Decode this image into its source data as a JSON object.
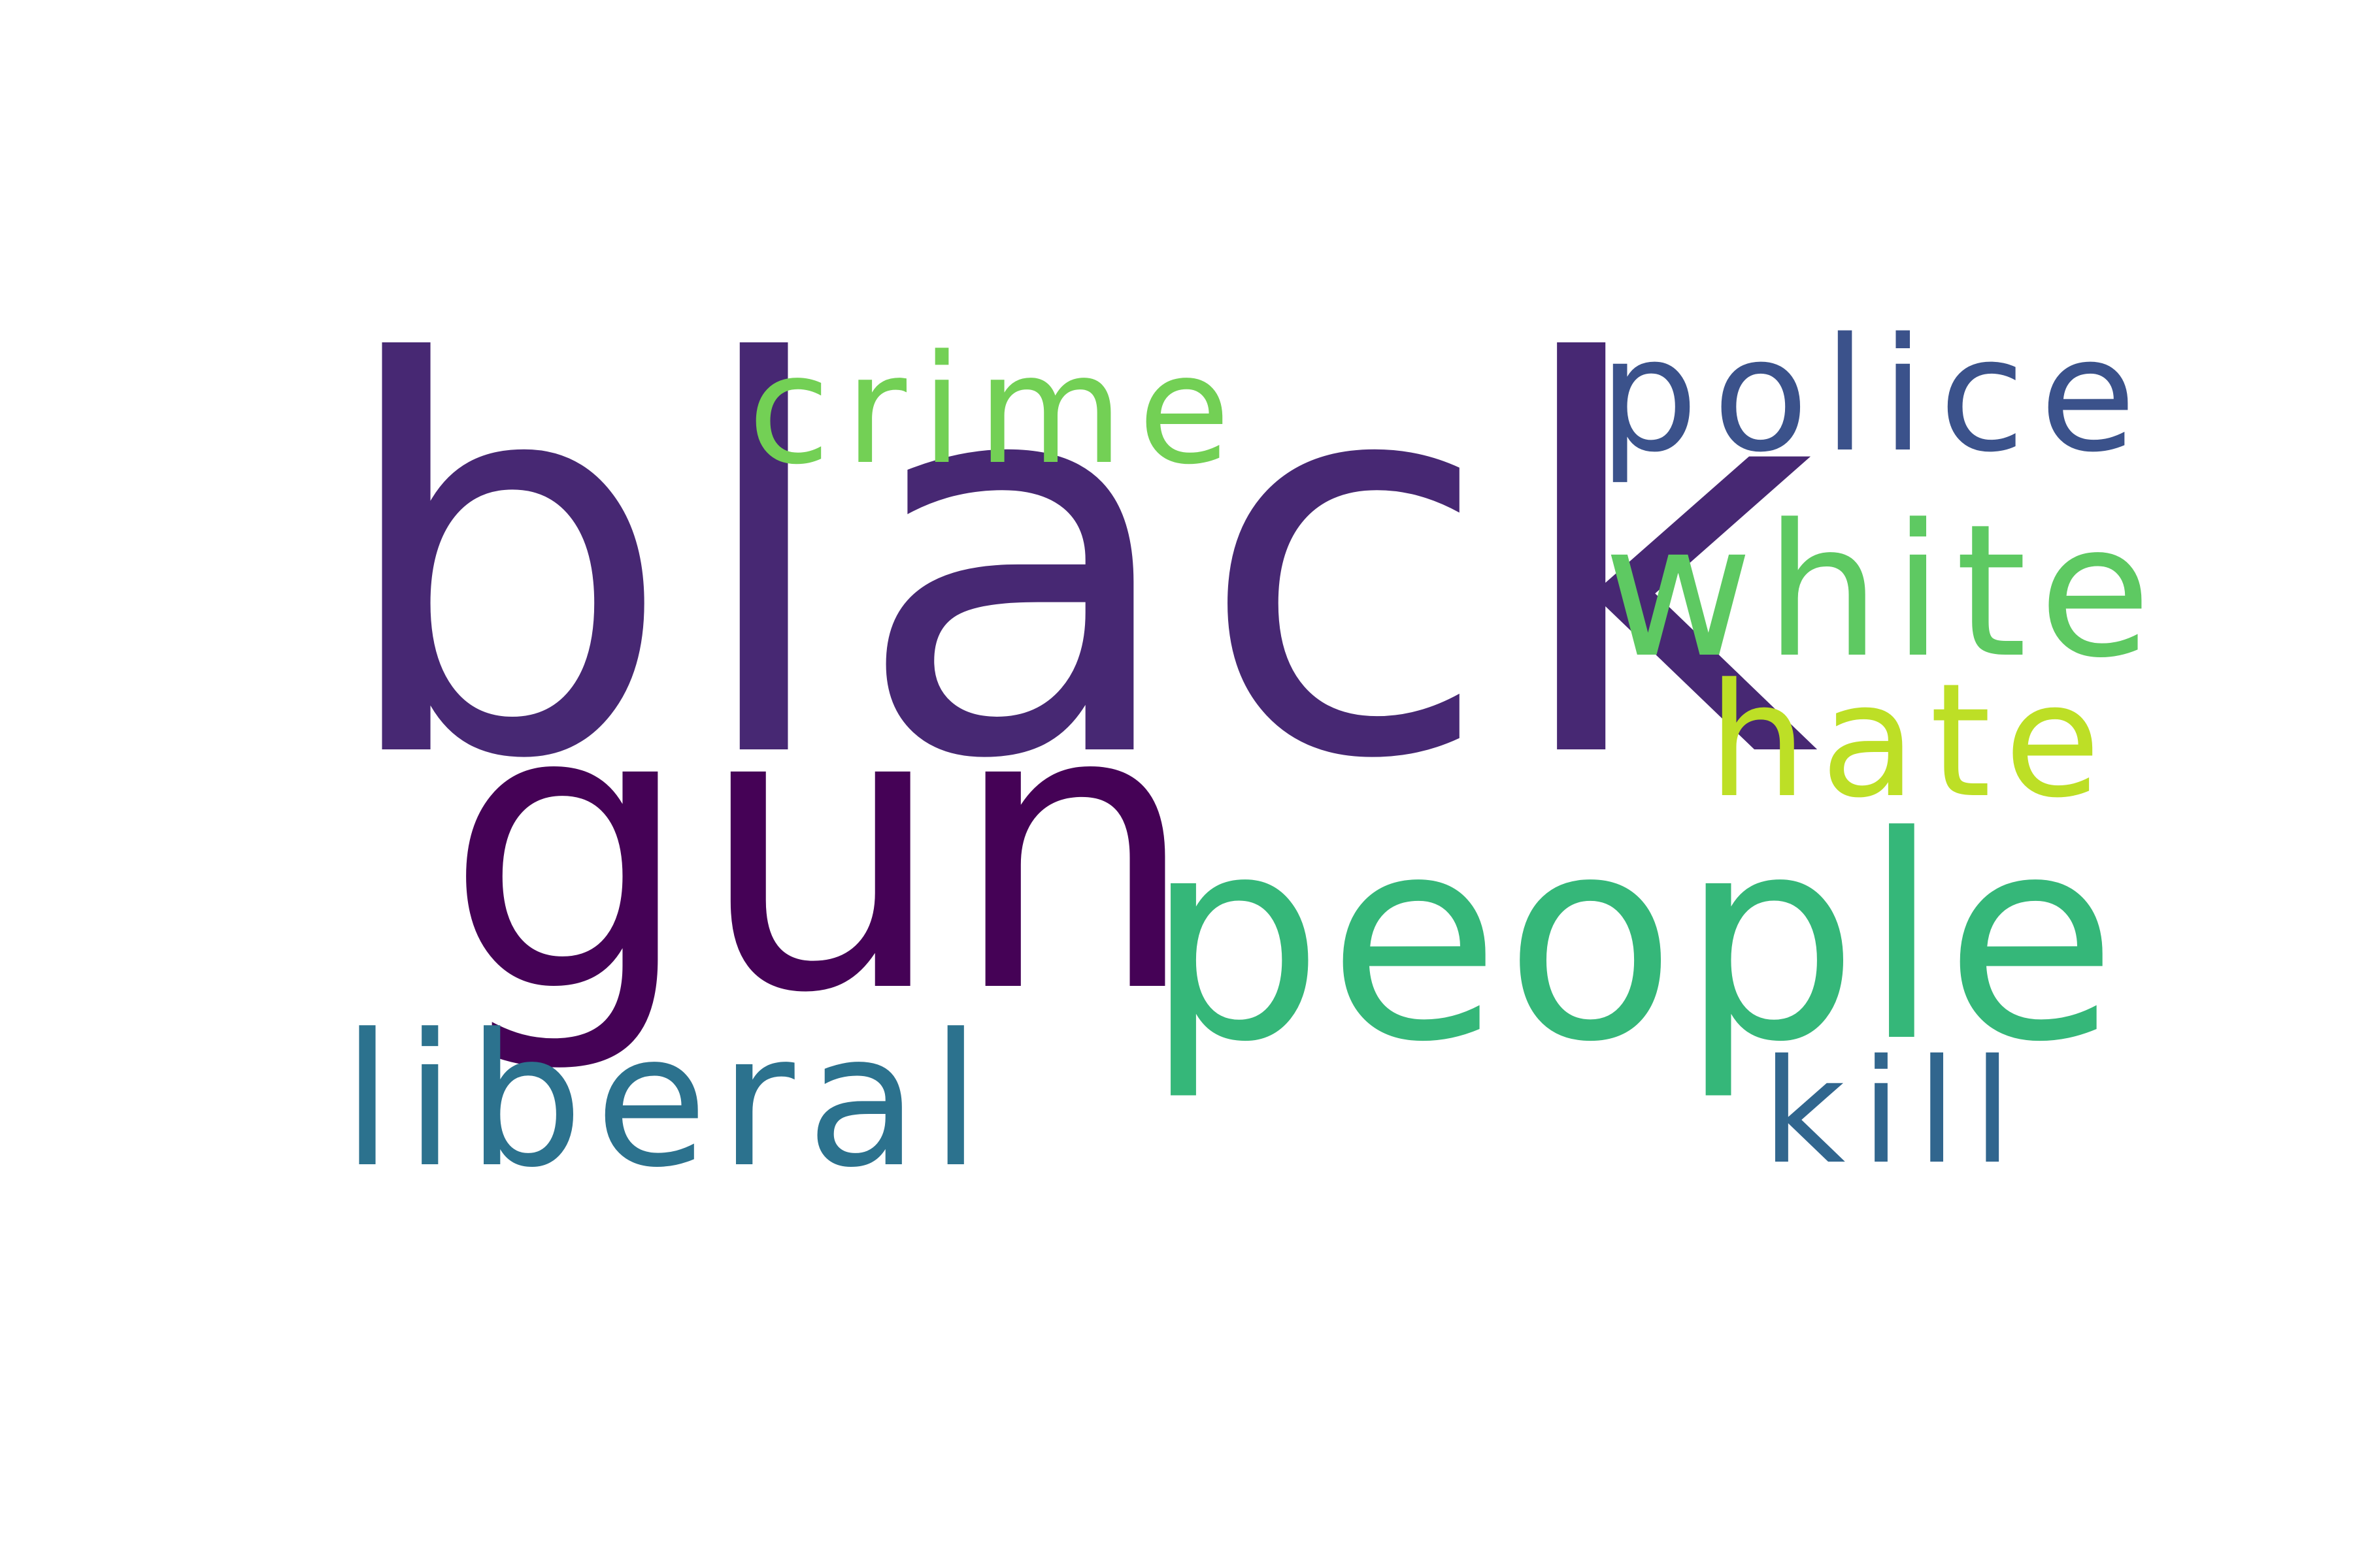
{
  "words": {
    "black": {
      "text": "black",
      "color": "#472873"
    },
    "gun": {
      "text": "gun",
      "color": "#450256"
    },
    "people": {
      "text": "people",
      "color": "#35b779"
    },
    "white": {
      "text": "white",
      "color": "#5ec962"
    },
    "liberal": {
      "text": "liberal",
      "color": "#2c728e"
    },
    "police": {
      "text": "police",
      "color": "#3b528b"
    },
    "crime": {
      "text": "crime",
      "color": "#73d055"
    },
    "hate": {
      "text": "hate",
      "color": "#bddf26"
    },
    "kill": {
      "text": "kill",
      "color": "#31668e"
    }
  }
}
